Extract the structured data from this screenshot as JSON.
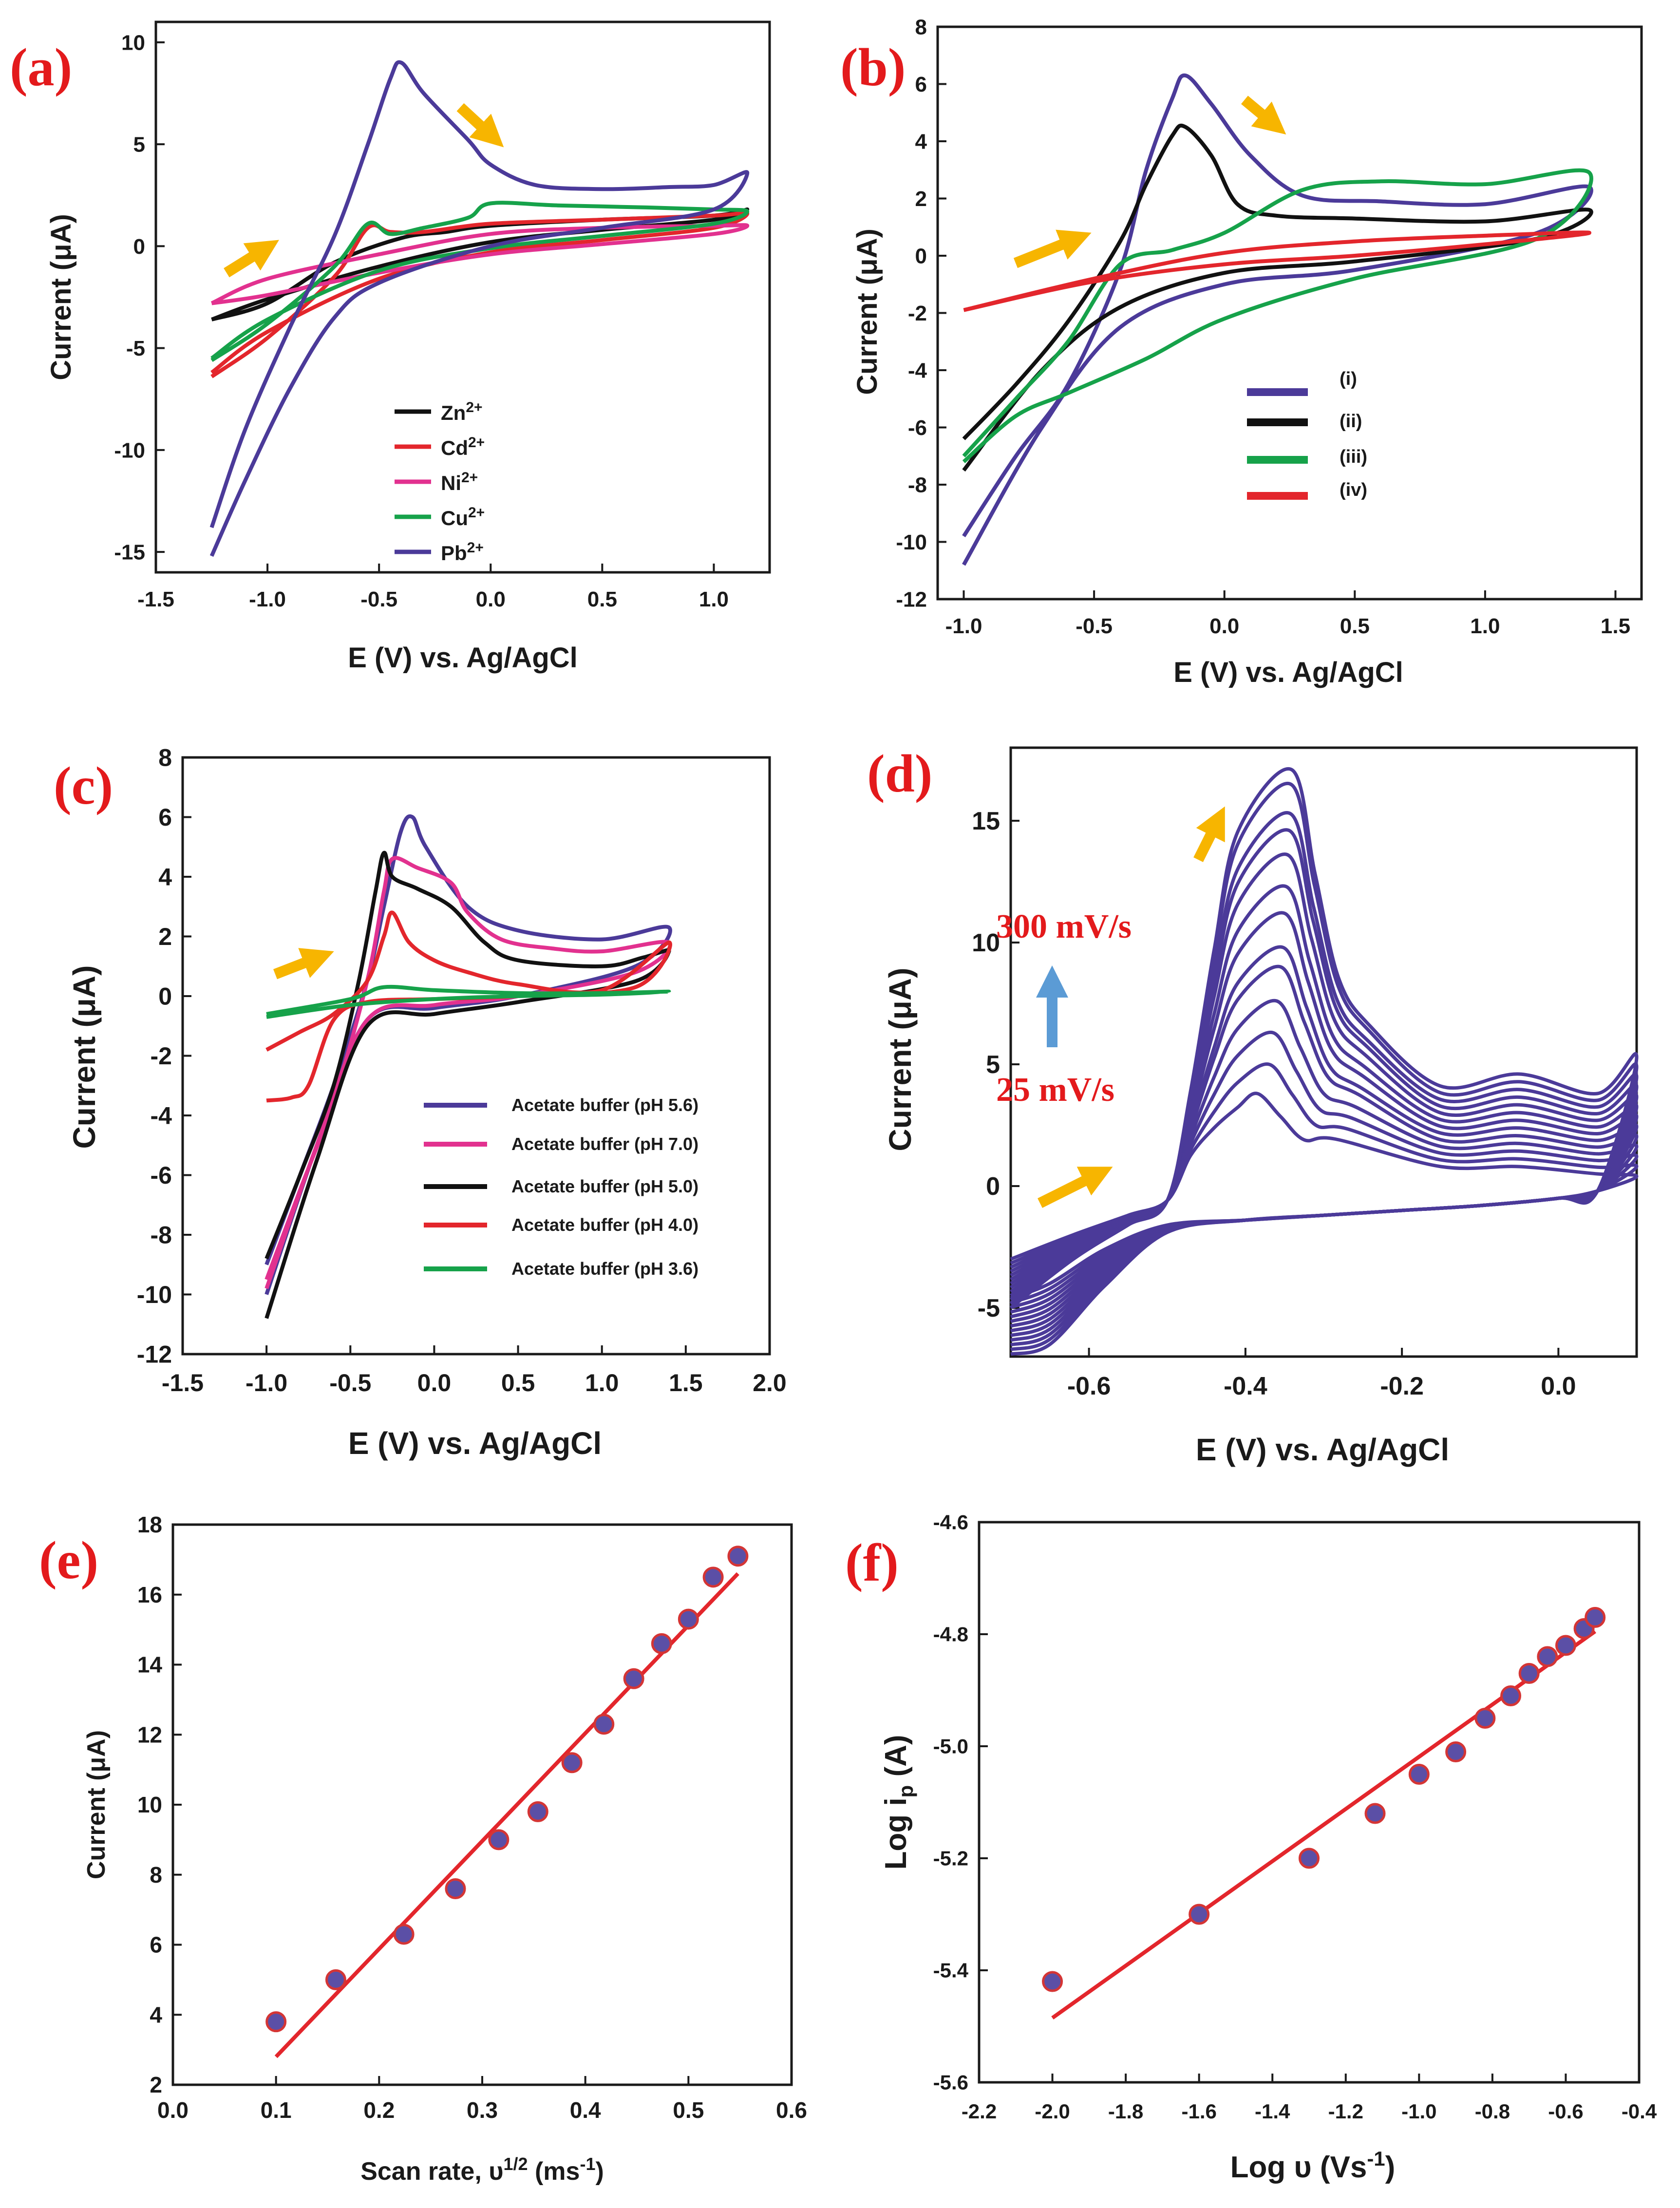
{
  "colors": {
    "arrow": "#f7b500",
    "blue_arrow": "#5b9bd5",
    "fit_line": "#e3262c",
    "marker_fill": "#5b4fa6",
    "marker_edge": "#d43535",
    "purple": "#4b3a99",
    "black": "#111111",
    "red": "#e3262c",
    "pink": "#e2318f",
    "green": "#16a24a"
  },
  "chart_data": [
    {
      "id": "a",
      "panel_label": "(a)",
      "type": "line",
      "xlabel": "E (V) vs. Ag/AgCl",
      "ylabel": "Current (μA)",
      "xlim": [
        -1.5,
        1.25
      ],
      "ylim": [
        -16,
        11
      ],
      "xticks": [
        -1.5,
        -1.0,
        -0.5,
        0.0,
        0.5,
        1.0
      ],
      "xtick_labels": [
        "-1.5",
        "-1.0",
        "-0.5",
        "0.0",
        "0.5",
        "1.0"
      ],
      "yticks": [
        -15,
        -10,
        -5,
        0,
        5,
        10
      ],
      "ytick_labels": [
        "-15",
        "-10",
        "-5",
        "0",
        "5",
        "10"
      ],
      "legend": [
        {
          "label": "Zn",
          "sup": "2+",
          "color": "#111111"
        },
        {
          "label": "Cd",
          "sup": "2+",
          "color": "#e3262c"
        },
        {
          "label": "Ni",
          "sup": "2+",
          "color": "#e2318f"
        },
        {
          "label": "Cu",
          "sup": "2+",
          "color": "#16a24a"
        },
        {
          "label": "Pb",
          "sup": "2+",
          "color": "#4b3a99"
        }
      ],
      "series": [
        {
          "name": "Zn2+",
          "color": "#111111",
          "x": [
            -1.25,
            -1.0,
            -0.7,
            -0.4,
            -0.2,
            0.0,
            0.5,
            1.0,
            1.15,
            1.0,
            0.5,
            0.0,
            -0.5,
            -1.0,
            -1.25
          ],
          "y": [
            -3.6,
            -2.8,
            -0.8,
            0.4,
            0.7,
            1.0,
            1.3,
            1.5,
            1.8,
            1.3,
            0.8,
            0.2,
            -1.0,
            -2.6,
            -3.6
          ]
        },
        {
          "name": "Cd2+",
          "color": "#e3262c",
          "x": [
            -1.25,
            -1.0,
            -0.7,
            -0.55,
            -0.45,
            -0.3,
            0.0,
            0.5,
            1.0,
            1.15,
            1.0,
            0.5,
            0.0,
            -0.5,
            -1.0,
            -1.25
          ],
          "y": [
            -6.4,
            -4.5,
            -1.5,
            0.9,
            0.7,
            0.7,
            1.1,
            1.3,
            1.5,
            1.6,
            0.9,
            0.3,
            -0.3,
            -1.6,
            -4.2,
            -6.2
          ]
        },
        {
          "name": "Ni2+",
          "color": "#e2318f",
          "x": [
            -1.25,
            -1.0,
            -0.5,
            0.0,
            0.5,
            1.0,
            1.15,
            1.0,
            0.5,
            0.0,
            -0.5,
            -1.0,
            -1.25
          ],
          "y": [
            -2.8,
            -1.6,
            -0.4,
            0.6,
            0.9,
            1.0,
            1.0,
            0.6,
            0.1,
            -0.4,
            -1.3,
            -2.4,
            -2.8
          ]
        },
        {
          "name": "Cu2+",
          "color": "#16a24a",
          "x": [
            -1.25,
            -1.0,
            -0.7,
            -0.55,
            -0.45,
            -0.3,
            -0.1,
            0.0,
            0.3,
            0.7,
            1.0,
            1.15,
            1.0,
            0.5,
            0.0,
            -0.5,
            -1.0,
            -1.25
          ],
          "y": [
            -5.6,
            -3.8,
            -1.0,
            1.1,
            0.6,
            0.9,
            1.4,
            2.1,
            2.0,
            1.9,
            1.8,
            1.7,
            1.1,
            0.5,
            -0.1,
            -1.2,
            -3.6,
            -5.5
          ]
        },
        {
          "name": "Pb2+",
          "color": "#4b3a99",
          "x": [
            -1.25,
            -1.1,
            -0.9,
            -0.7,
            -0.55,
            -0.45,
            -0.4,
            -0.3,
            -0.1,
            0.0,
            0.2,
            0.5,
            0.8,
            1.0,
            1.15,
            1.0,
            0.5,
            0.0,
            -0.5,
            -0.7,
            -0.9,
            -1.1,
            -1.25
          ],
          "y": [
            -13.8,
            -9.0,
            -4.0,
            0.5,
            5.0,
            8.2,
            9.0,
            7.5,
            5.2,
            4.0,
            3.0,
            2.8,
            2.9,
            3.0,
            3.6,
            1.8,
            0.9,
            0.0,
            -1.8,
            -3.5,
            -7.0,
            -11.5,
            -15.2
          ]
        }
      ]
    },
    {
      "id": "b",
      "panel_label": "(b)",
      "type": "line",
      "xlabel": "E (V) vs. Ag/AgCl",
      "ylabel": "Current (μA)",
      "xlim": [
        -1.1,
        1.6
      ],
      "ylim": [
        -12,
        8
      ],
      "xticks": [
        -1.0,
        -0.5,
        0.0,
        0.5,
        1.0,
        1.5
      ],
      "xtick_labels": [
        "-1.0",
        "-0.5",
        "0.0",
        "0.5",
        "1.0",
        "1.5"
      ],
      "yticks": [
        -12,
        -10,
        -8,
        -6,
        -4,
        -2,
        0,
        2,
        4,
        6,
        8
      ],
      "ytick_labels": [
        "-12",
        "-10",
        "-8",
        "-6",
        "-4",
        "-2",
        "0",
        "2",
        "4",
        "6",
        "8"
      ],
      "legend": [
        {
          "label": "(i)",
          "color": "#4b3a99"
        },
        {
          "label": "(ii)",
          "color": "#111111"
        },
        {
          "label": "(iii)",
          "color": "#16a24a"
        },
        {
          "label": "(iv)",
          "color": "#e3262c"
        }
      ],
      "series": [
        {
          "name": "(i)",
          "color": "#4b3a99",
          "x": [
            -1.0,
            -0.8,
            -0.6,
            -0.4,
            -0.3,
            -0.2,
            -0.15,
            -0.05,
            0.1,
            0.3,
            0.6,
            1.0,
            1.4,
            1.2,
            0.5,
            0.0,
            -0.4,
            -0.7,
            -1.0
          ],
          "y": [
            -9.8,
            -7.0,
            -4.5,
            -0.5,
            3.0,
            5.5,
            6.3,
            5.3,
            3.5,
            2.1,
            1.9,
            1.8,
            2.4,
            0.8,
            -0.5,
            -1.0,
            -2.5,
            -6.0,
            -10.8
          ]
        },
        {
          "name": "(ii)",
          "color": "#111111",
          "x": [
            -1.0,
            -0.8,
            -0.6,
            -0.4,
            -0.3,
            -0.2,
            -0.15,
            -0.05,
            0.05,
            0.2,
            0.5,
            1.0,
            1.4,
            1.2,
            0.5,
            0.0,
            -0.4,
            -0.7,
            -1.0
          ],
          "y": [
            -6.4,
            -4.5,
            -2.3,
            0.5,
            2.5,
            4.2,
            4.5,
            3.5,
            1.8,
            1.4,
            1.3,
            1.2,
            1.6,
            0.6,
            -0.2,
            -0.6,
            -1.8,
            -4.0,
            -7.5
          ]
        },
        {
          "name": "(iii)",
          "color": "#16a24a",
          "x": [
            -1.0,
            -0.8,
            -0.6,
            -0.4,
            -0.2,
            0.0,
            0.3,
            0.6,
            1.0,
            1.4,
            1.2,
            0.5,
            0.0,
            -0.3,
            -0.6,
            -0.8,
            -1.0
          ],
          "y": [
            -7.0,
            -5.0,
            -3.0,
            -0.3,
            0.2,
            0.8,
            2.3,
            2.6,
            2.5,
            2.9,
            0.6,
            -0.8,
            -2.2,
            -3.6,
            -4.8,
            -5.6,
            -7.2
          ]
        },
        {
          "name": "(iv)",
          "color": "#e3262c",
          "x": [
            -1.0,
            -0.5,
            0.0,
            0.5,
            1.0,
            1.4,
            1.0,
            0.5,
            0.0,
            -0.5,
            -1.0
          ],
          "y": [
            -1.9,
            -0.8,
            0.1,
            0.5,
            0.7,
            0.8,
            0.4,
            0.0,
            -0.3,
            -0.9,
            -1.9
          ]
        }
      ]
    },
    {
      "id": "c",
      "panel_label": "(c)",
      "type": "line",
      "xlabel": "E (V) vs. Ag/AgCl",
      "ylabel": "Current (μA)",
      "xlim": [
        -1.5,
        2.0
      ],
      "ylim": [
        -12,
        8
      ],
      "xticks": [
        -1.5,
        -1.0,
        -0.5,
        0.0,
        0.5,
        1.0,
        1.5,
        2.0
      ],
      "xtick_labels": [
        "-1.5",
        "-1.0",
        "-0.5",
        "0.0",
        "0.5",
        "1.0",
        "1.5",
        "2.0"
      ],
      "yticks": [
        -12,
        -10,
        -8,
        -6,
        -4,
        -2,
        0,
        2,
        4,
        6,
        8
      ],
      "ytick_labels": [
        "-12",
        "-10",
        "-8",
        "-6",
        "-4",
        "-2",
        "0",
        "2",
        "4",
        "6",
        "8"
      ],
      "legend": [
        {
          "label": "Acetate buffer (pH 5.6)",
          "color": "#4b3a99"
        },
        {
          "label": "Acetate buffer (pH 7.0)",
          "color": "#e2318f"
        },
        {
          "label": "Acetate buffer (pH 5.0)",
          "color": "#111111"
        },
        {
          "label": "Acetate buffer (pH 4.0)",
          "color": "#e3262c"
        },
        {
          "label": "Acetate buffer (pH 3.6)",
          "color": "#16a24a"
        }
      ],
      "series": [
        {
          "name": "pH 5.6",
          "color": "#4b3a99",
          "x": [
            -1.0,
            -0.8,
            -0.6,
            -0.4,
            -0.3,
            -0.2,
            -0.13,
            -0.05,
            0.2,
            0.5,
            1.0,
            1.4,
            1.2,
            0.5,
            0.0,
            -0.4,
            -0.7,
            -1.0
          ],
          "y": [
            -9.0,
            -6.0,
            -3.0,
            0.5,
            3.0,
            5.5,
            6.0,
            5.0,
            3.0,
            2.2,
            1.9,
            2.3,
            1.0,
            0.0,
            -0.4,
            -0.8,
            -5.0,
            -10.0
          ]
        },
        {
          "name": "pH 7.0",
          "color": "#e2318f",
          "x": [
            -1.0,
            -0.8,
            -0.6,
            -0.4,
            -0.3,
            -0.25,
            -0.1,
            0.1,
            0.2,
            0.4,
            0.7,
            1.0,
            1.4,
            1.2,
            0.5,
            0.0,
            -0.4,
            -0.7,
            -1.0
          ],
          "y": [
            -9.5,
            -6.5,
            -3.5,
            0.5,
            3.5,
            4.6,
            4.3,
            3.8,
            2.8,
            1.9,
            1.6,
            1.5,
            1.8,
            0.8,
            0.0,
            -0.3,
            -0.8,
            -5.0,
            -9.8
          ]
        },
        {
          "name": "pH 5.0",
          "color": "#111111",
          "x": [
            -1.0,
            -0.8,
            -0.6,
            -0.45,
            -0.35,
            -0.3,
            -0.25,
            -0.1,
            0.1,
            0.3,
            0.5,
            1.0,
            1.25,
            1.4,
            1.2,
            0.5,
            0.0,
            -0.4,
            -0.7,
            -1.0
          ],
          "y": [
            -8.8,
            -6.0,
            -3.0,
            0.5,
            3.5,
            4.8,
            4.0,
            3.6,
            3.0,
            1.8,
            1.2,
            1.0,
            1.3,
            1.5,
            0.5,
            -0.2,
            -0.6,
            -1.0,
            -5.5,
            -10.8
          ]
        },
        {
          "name": "pH 4.0",
          "color": "#e3262c",
          "x": [
            -1.0,
            -0.8,
            -0.6,
            -0.4,
            -0.3,
            -0.25,
            -0.15,
            0.0,
            0.2,
            0.5,
            1.0,
            1.4,
            1.2,
            0.5,
            0.0,
            -0.4,
            -0.6,
            -0.75,
            -0.85,
            -1.0
          ],
          "y": [
            -1.8,
            -1.2,
            -0.6,
            0.5,
            2.0,
            2.8,
            1.8,
            1.2,
            0.8,
            0.4,
            0.2,
            1.8,
            0.3,
            0.0,
            -0.1,
            -0.2,
            -0.8,
            -3.0,
            -3.4,
            -3.5
          ]
        },
        {
          "name": "pH 3.6",
          "color": "#16a24a",
          "x": [
            -1.0,
            -0.5,
            -0.3,
            0.0,
            0.5,
            1.0,
            1.4,
            1.0,
            0.5,
            0.0,
            -0.5,
            -1.0
          ],
          "y": [
            -0.6,
            -0.1,
            0.3,
            0.2,
            0.1,
            0.1,
            0.15,
            0.05,
            0.0,
            -0.1,
            -0.3,
            -0.7
          ]
        }
      ]
    },
    {
      "id": "d",
      "panel_label": "(d)",
      "type": "line",
      "xlabel": "E (V) vs. Ag/AgCl",
      "ylabel": "Current (μA)",
      "xlim": [
        -0.7,
        0.1
      ],
      "ylim": [
        -7,
        18
      ],
      "xticks": [
        -0.6,
        -0.4,
        -0.2,
        0.0
      ],
      "xtick_labels": [
        "-0.6",
        "-0.4",
        "-0.2",
        "0.0"
      ],
      "yticks": [
        -5,
        0,
        5,
        10,
        15
      ],
      "ytick_labels": [
        "-5",
        "0",
        "5",
        "10",
        "15"
      ],
      "annotation_top": "300 mV/s",
      "annotation_bottom": "25 mV/s",
      "peak_currents": [
        3.8,
        5.0,
        6.3,
        7.6,
        9.0,
        9.8,
        11.2,
        12.3,
        13.6,
        14.6,
        15.3,
        16.5,
        17.1
      ],
      "peak_potentials": [
        -0.385,
        -0.37,
        -0.365,
        -0.36,
        -0.355,
        -0.352,
        -0.35,
        -0.348,
        -0.346,
        -0.344,
        -0.343,
        -0.342,
        -0.341
      ],
      "line_color": "#4b3a99"
    },
    {
      "id": "e",
      "panel_label": "(e)",
      "type": "scatter",
      "xlabel": "Scan rate, υ",
      "xlabel_sup": "1/2",
      "xlabel_unit": " (ms",
      "xlabel_unit_sup": "-1",
      "xlabel_close": ")",
      "ylabel": "Current (μA)",
      "xlim": [
        0.0,
        0.6
      ],
      "ylim": [
        2,
        18
      ],
      "xticks": [
        0.0,
        0.1,
        0.2,
        0.3,
        0.4,
        0.5,
        0.6
      ],
      "xtick_labels": [
        "0.0",
        "0.1",
        "0.2",
        "0.3",
        "0.4",
        "0.5",
        "0.6"
      ],
      "yticks": [
        2,
        4,
        6,
        8,
        10,
        12,
        14,
        16,
        18
      ],
      "ytick_labels": [
        "2",
        "4",
        "6",
        "8",
        "10",
        "12",
        "14",
        "16",
        "18"
      ],
      "x": [
        0.1,
        0.158,
        0.224,
        0.274,
        0.316,
        0.354,
        0.387,
        0.418,
        0.447,
        0.474,
        0.5,
        0.524,
        0.548
      ],
      "y": [
        3.8,
        5.0,
        6.3,
        7.6,
        9.0,
        9.8,
        11.2,
        12.3,
        13.6,
        14.6,
        15.3,
        16.5,
        17.1
      ],
      "fit": {
        "x": [
          0.1,
          0.548
        ],
        "y": [
          2.8,
          16.6
        ]
      }
    },
    {
      "id": "f",
      "panel_label": "(f)",
      "type": "scatter",
      "xlabel": "Log υ (Vs",
      "xlabel_sup": "-1",
      "xlabel_close": ")",
      "ylabel": "Log i",
      "ylabel_sub": "p",
      "ylabel_unit": " (A)",
      "xlim": [
        -2.2,
        -0.4
      ],
      "ylim": [
        -5.6,
        -4.6
      ],
      "xticks": [
        -2.2,
        -2.0,
        -1.8,
        -1.6,
        -1.4,
        -1.2,
        -1.0,
        -0.8,
        -0.6,
        -0.4
      ],
      "xtick_labels": [
        "-2.2",
        "-2.0",
        "-1.8",
        "-1.6",
        "-1.4",
        "-1.2",
        "-1.0",
        "-0.8",
        "-0.6",
        "-0.4"
      ],
      "yticks": [
        -5.6,
        -5.4,
        -5.2,
        -5.0,
        -4.8,
        -4.6
      ],
      "ytick_labels": [
        "-5.6",
        "-5.4",
        "-5.2",
        "-5.0",
        "-4.8",
        "-4.6"
      ],
      "x": [
        -2.0,
        -1.6,
        -1.3,
        -1.12,
        -1.0,
        -0.9,
        -0.82,
        -0.75,
        -0.7,
        -0.65,
        -0.6,
        -0.55,
        -0.52
      ],
      "y": [
        -5.42,
        -5.3,
        -5.2,
        -5.12,
        -5.05,
        -5.01,
        -4.95,
        -4.91,
        -4.87,
        -4.84,
        -4.82,
        -4.79,
        -4.77
      ],
      "fit": {
        "x": [
          -2.0,
          -0.52
        ],
        "y": [
          -5.485,
          -4.795
        ]
      }
    }
  ]
}
